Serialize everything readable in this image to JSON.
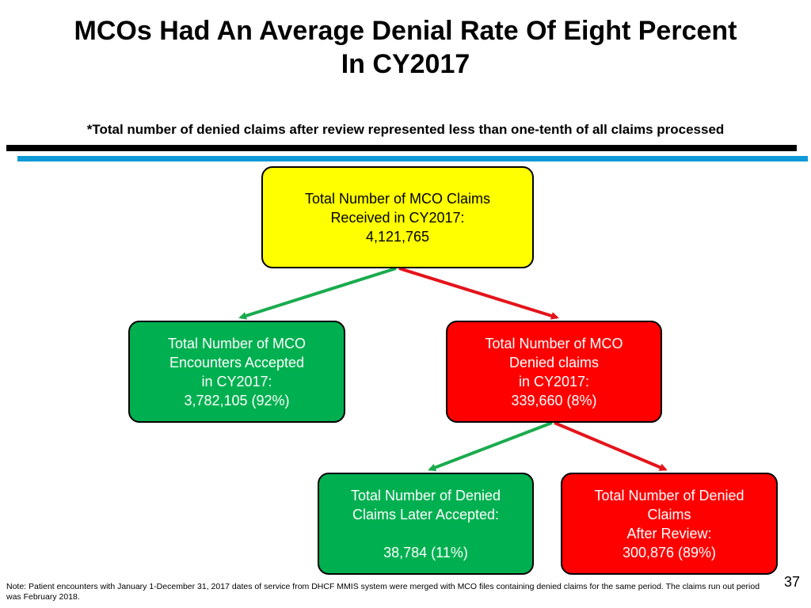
{
  "slide": {
    "title_lines": [
      "MCOs Had An Average Denial Rate Of Eight Percent",
      "In CY2017"
    ],
    "subtitle": "*Total number of denied claims after review represented less than one-tenth of all claims processed",
    "note": "Note: Patient encounters with January 1-December 31, 2017 dates of service from DHCF MMIS system were merged with MCO files containing denied claims for the same period.  The claims run out period was February 2018.",
    "page_number": "37"
  },
  "colors": {
    "yellow": "#ffff00",
    "green": "#00b050",
    "red": "#ff0000",
    "blue_rule": "#0d9ad6",
    "green_arrow": "#1aab4e",
    "red_arrow": "#e4141b"
  },
  "diagram": {
    "received": {
      "lines": [
        "Total Number of MCO Claims",
        "Received in CY2017:",
        "4,121,765"
      ]
    },
    "accepted": {
      "lines": [
        "Total Number of MCO",
        "Encounters Accepted",
        "in CY2017:",
        "3,782,105 (92%)"
      ]
    },
    "denied": {
      "lines": [
        "Total Number of MCO",
        "Denied claims",
        "in CY2017:",
        "339,660 (8%)"
      ]
    },
    "later_accepted": {
      "lines": [
        "Total Number of Denied",
        "Claims Later Accepted:",
        "",
        "38,784 (11%)"
      ]
    },
    "after_review": {
      "lines": [
        "Total Number of Denied",
        "Claims",
        "After Review:",
        "300,876 (89%)"
      ]
    }
  }
}
